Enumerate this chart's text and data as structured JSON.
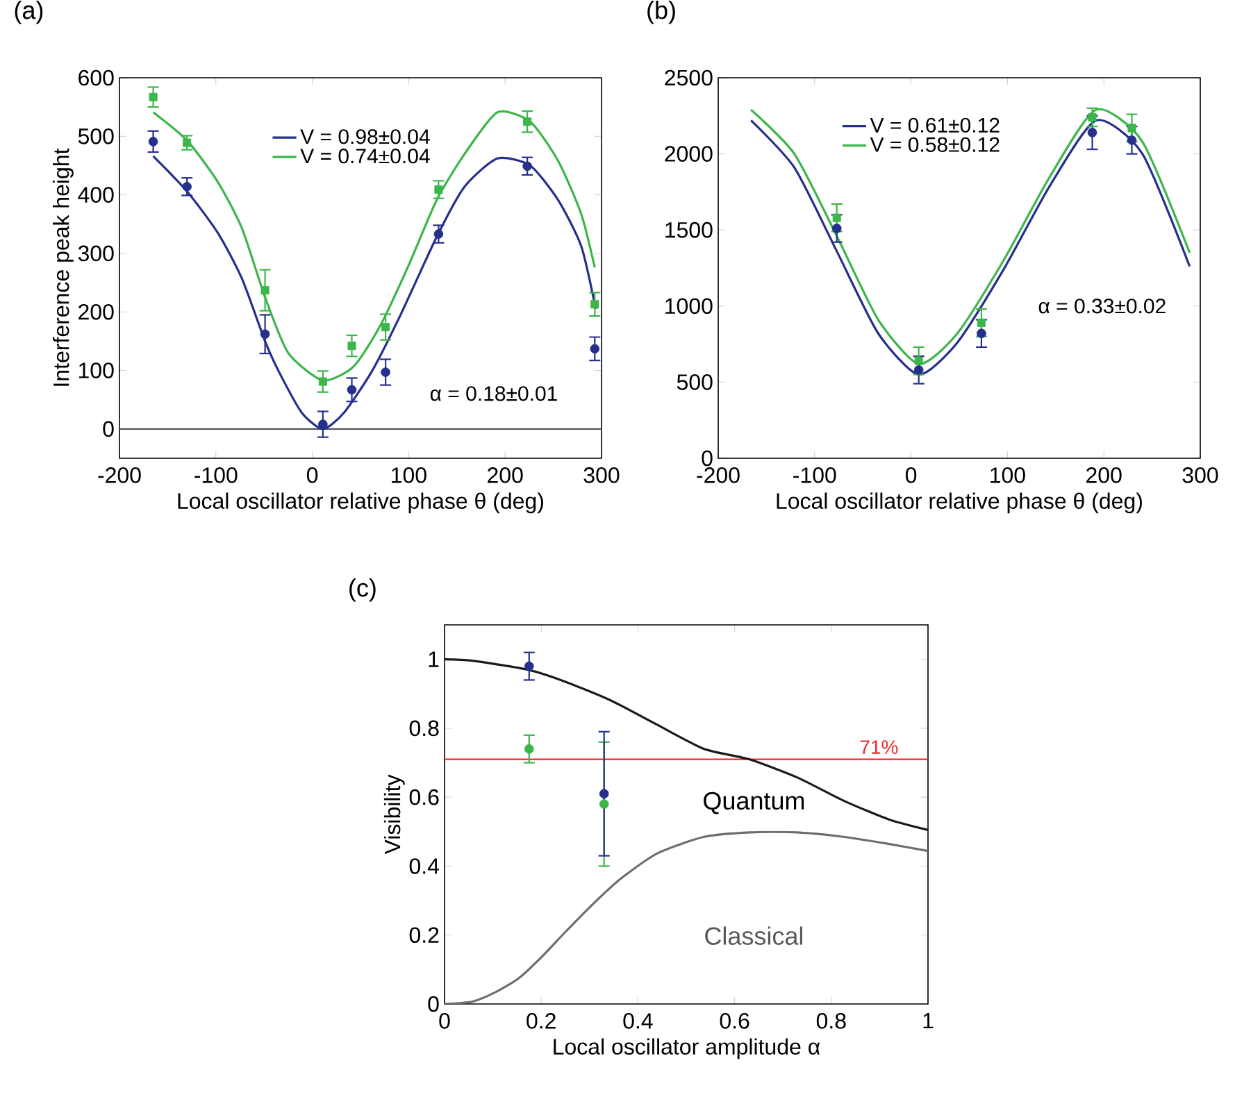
{
  "chart_data": [
    {
      "type": "line",
      "title": "(a)",
      "xlabel": "Local oscillator relative phase θ (deg)",
      "ylabel": "Interference peak height",
      "xlim": [
        -200,
        300
      ],
      "ylim": [
        -50,
        600
      ],
      "xticks": [
        -200,
        -100,
        0,
        100,
        200,
        300
      ],
      "yticks": [
        0,
        100,
        200,
        300,
        400,
        500,
        600
      ],
      "legend": "top",
      "annotations": [
        "α = 0.18±0.01"
      ],
      "ref_lines": [
        {
          "axis": "y",
          "value": 0,
          "color": "#555555"
        }
      ],
      "series": [
        {
          "name": "V = 0.98±0.04",
          "color": "#252f8c",
          "x": [
            -165,
            -130,
            -98,
            -73,
            -49,
            -35,
            -11,
            11,
            33,
            62,
            91,
            129,
            158,
            192,
            226,
            255,
            279,
            294
          ],
          "values": [
            466,
            406,
            335,
            257,
            150,
            99,
            28,
            0,
            28,
            99,
            193,
            328,
            414,
            462,
            450,
            391,
            312,
            205
          ]
        },
        {
          "name": "V = 0.74±0.04",
          "color": "#3cb54a",
          "x": [
            -165,
            -130,
            -98,
            -73,
            -49,
            -25,
            11,
            43,
            71,
            100,
            129,
            158,
            192,
            226,
            255,
            279,
            293
          ],
          "values": [
            541,
            493,
            422,
            343,
            225,
            130,
            83,
            107,
            178,
            280,
            391,
            470,
            541,
            525,
            458,
            367,
            276
          ]
        },
        {
          "type": "scatter",
          "marker": "circle",
          "color": "#252f8c",
          "x": [
            -165,
            -130,
            -49,
            11,
            41,
            76,
            131,
            223,
            293
          ],
          "values": [
            491,
            414,
            162,
            8,
            67,
            97,
            333,
            449,
            137
          ],
          "errors": [
            18,
            15,
            33,
            22,
            20,
            22,
            15,
            15,
            20
          ]
        },
        {
          "type": "scatter",
          "marker": "square",
          "color": "#3cb54a",
          "x": [
            -165,
            -130,
            -49,
            11,
            41,
            76,
            131,
            223,
            293
          ],
          "values": [
            567,
            489,
            237,
            81,
            142,
            174,
            409,
            525,
            213
          ],
          "errors": [
            17,
            12,
            35,
            18,
            18,
            22,
            15,
            18,
            20
          ]
        }
      ]
    },
    {
      "type": "line",
      "title": "(b)",
      "xlabel": "Local oscillator relative phase θ (deg)",
      "xlim": [
        -200,
        300
      ],
      "ylim": [
        0,
        2500
      ],
      "xticks": [
        -200,
        -100,
        0,
        100,
        200,
        300
      ],
      "yticks": [
        0,
        500,
        1000,
        1500,
        2000,
        2500
      ],
      "legend": "top",
      "annotations": [
        "α = 0.33±0.02"
      ],
      "series": [
        {
          "name": "V = 0.61±0.12",
          "color": "#252f8c",
          "x": [
            -166,
            -121,
            -77,
            -34,
            8,
            48,
            96,
            144,
            192,
            240,
            289
          ],
          "values": [
            2220,
            1910,
            1360,
            820,
            550,
            760,
            1240,
            1790,
            2220,
            2000,
            1260
          ]
        },
        {
          "name": "V = 0.58±0.12",
          "color": "#3cb54a",
          "x": [
            -166,
            -121,
            -77,
            -34,
            8,
            48,
            96,
            144,
            192,
            240,
            289
          ],
          "values": [
            2290,
            2000,
            1460,
            910,
            620,
            820,
            1300,
            1850,
            2290,
            2080,
            1350
          ]
        },
        {
          "type": "scatter",
          "marker": "circle",
          "color": "#252f8c",
          "x": [
            -77,
            8,
            73,
            188,
            229
          ],
          "values": [
            1510,
            580,
            820,
            2140,
            2090
          ],
          "errors": [
            90,
            90,
            90,
            110,
            90
          ]
        },
        {
          "type": "scatter",
          "marker": "square",
          "color": "#3cb54a",
          "x": [
            -77,
            8,
            73,
            188,
            229
          ],
          "values": [
            1580,
            640,
            890,
            2240,
            2170
          ],
          "errors": [
            90,
            90,
            90,
            60,
            90
          ]
        }
      ]
    },
    {
      "type": "line",
      "title": "(c)",
      "xlabel": "Local oscillator amplitude α",
      "ylabel": "Visibility",
      "xlim": [
        0,
        1
      ],
      "ylim": [
        0,
        1.1
      ],
      "xticks": [
        0,
        0.2,
        0.4,
        0.6,
        0.8,
        1
      ],
      "yticks": [
        0,
        0.2,
        0.4,
        0.6,
        0.8,
        1
      ],
      "annotations": [
        "Quantum",
        "Classical"
      ],
      "ref_lines": [
        {
          "axis": "y",
          "value": 0.71,
          "label": "71%",
          "color": "#ee2b2b"
        }
      ],
      "series": [
        {
          "color": "#1a1a1a",
          "x": [
            0,
            0.058,
            0.175,
            0.25,
            0.345,
            0.44,
            0.537,
            0.63,
            0.73,
            0.825,
            0.92,
            1
          ],
          "values": [
            1,
            0.996,
            0.969,
            0.935,
            0.88,
            0.81,
            0.74,
            0.71,
            0.657,
            0.59,
            0.535,
            0.505
          ]
        },
        {
          "color": "#6e6e6e",
          "x": [
            0,
            0.058,
            0.105,
            0.153,
            0.2,
            0.25,
            0.307,
            0.364,
            0.44,
            0.537,
            0.633,
            0.729,
            0.825,
            0.92,
            1
          ],
          "values": [
            0,
            0.007,
            0.034,
            0.074,
            0.135,
            0.209,
            0.29,
            0.363,
            0.437,
            0.485,
            0.498,
            0.498,
            0.485,
            0.464,
            0.444
          ]
        },
        {
          "type": "scatter",
          "marker": "circle",
          "color": "#3cb54a",
          "x": [
            0.175,
            0.33
          ],
          "values": [
            0.74,
            0.58
          ],
          "errors": [
            0.04,
            [
              0.4,
              0.76
            ]
          ]
        },
        {
          "type": "scatter",
          "marker": "circle",
          "color": "#252f8c",
          "x": [
            0.175,
            0.33
          ],
          "values": [
            0.98,
            0.61
          ],
          "errors": [
            0.04,
            [
              0.43,
              0.79
            ]
          ]
        }
      ]
    }
  ]
}
